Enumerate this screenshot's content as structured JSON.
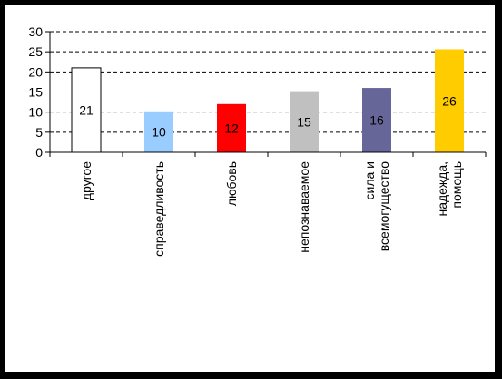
{
  "chart_data": {
    "type": "bar",
    "categories": [
      [
        "другое"
      ],
      [
        "справедливость"
      ],
      [
        "любовь"
      ],
      [
        "непознаваемое"
      ],
      [
        "сила и",
        "всемогущество"
      ],
      [
        "надежда,",
        "помощь"
      ]
    ],
    "values": [
      21,
      10,
      12,
      15,
      16,
      26
    ],
    "heights": [
      21,
      10.2,
      12,
      15.2,
      16,
      25.6
    ],
    "colors": [
      "#ffffff",
      "#99ccff",
      "#ff0000",
      "#c0c0c0",
      "#666699",
      "#ffcc00"
    ],
    "ylim": [
      0,
      30
    ],
    "yticks": [
      0,
      5,
      10,
      15,
      20,
      25,
      30
    ],
    "grid": true,
    "title": "",
    "xlabel": "",
    "ylabel": ""
  }
}
